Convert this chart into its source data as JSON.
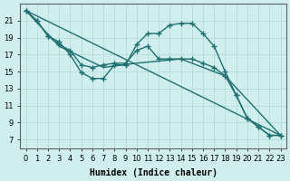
{
  "xlabel": "Humidex (Indice chaleur)",
  "background_color": "#d0eeee",
  "grid_color": "#b0d8d8",
  "line_color": "#207070",
  "xlim": [
    -0.5,
    23.5
  ],
  "ylim": [
    6,
    23
  ],
  "xticks": [
    0,
    1,
    2,
    3,
    4,
    5,
    6,
    7,
    8,
    9,
    10,
    11,
    12,
    13,
    14,
    15,
    16,
    17,
    18,
    19,
    20,
    21,
    22,
    23
  ],
  "yticks": [
    7,
    9,
    11,
    13,
    15,
    17,
    19,
    21
  ],
  "line1_x": [
    0,
    1,
    2,
    3,
    4,
    5,
    6,
    7,
    8,
    9,
    10,
    11,
    12,
    13,
    14,
    15,
    16,
    17,
    18,
    19,
    20,
    21,
    22,
    23
  ],
  "line1_y": [
    22.2,
    21.0,
    19.2,
    18.5,
    17.0,
    14.9,
    14.2,
    14.2,
    15.8,
    15.8,
    18.2,
    19.5,
    19.5,
    20.5,
    20.7,
    20.7,
    19.5,
    18.0,
    15.0,
    12.2,
    9.5,
    8.5,
    7.5,
    7.5
  ],
  "line2_x": [
    0,
    1,
    2,
    3,
    4,
    5,
    6,
    7,
    8,
    9,
    10,
    11,
    12,
    13,
    14,
    15,
    16,
    17,
    18,
    19,
    20,
    21,
    22,
    23
  ],
  "line2_y": [
    22.2,
    21.0,
    19.2,
    18.2,
    17.5,
    15.8,
    15.5,
    15.8,
    16.0,
    16.0,
    17.5,
    18.0,
    16.5,
    16.5,
    16.5,
    16.5,
    16.0,
    15.5,
    14.5,
    12.2,
    9.5,
    8.5,
    7.5,
    7.5
  ],
  "line3_x": [
    0,
    23
  ],
  "line3_y": [
    22.2,
    7.5
  ],
  "line4_x": [
    0,
    3,
    7,
    10,
    14,
    18,
    23
  ],
  "line4_y": [
    22.2,
    18.0,
    15.5,
    16.0,
    16.5,
    14.5,
    7.5
  ]
}
